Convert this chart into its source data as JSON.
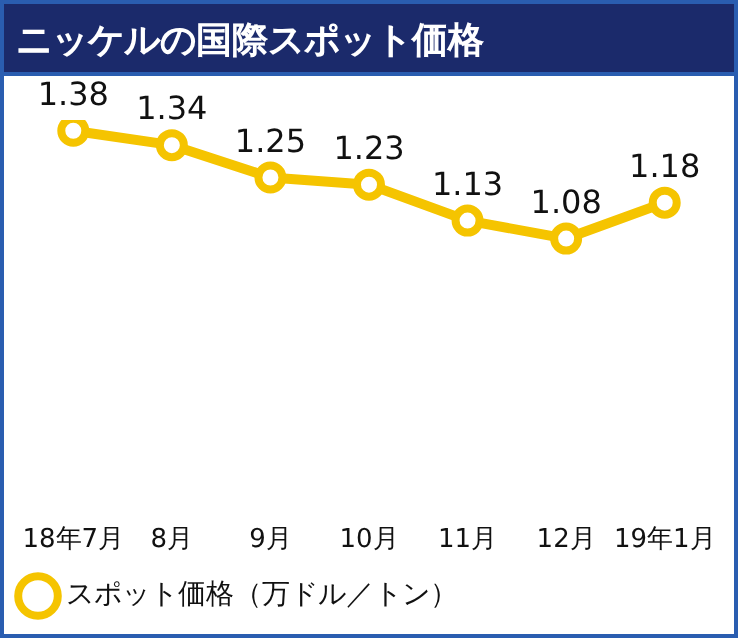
{
  "chart_data": {
    "type": "line",
    "title": "ニッケルの国際スポット価格",
    "categories": [
      "18年7月",
      "8月",
      "9月",
      "10月",
      "11月",
      "12月",
      "19年1月"
    ],
    "series": [
      {
        "name": "スポット価格（万ドル／トン）",
        "color": "#f5c400",
        "values": [
          1.38,
          1.34,
          1.25,
          1.23,
          1.13,
          1.08,
          1.18
        ]
      }
    ],
    "data_labels": true,
    "legend": "bottom left",
    "marker": "circle",
    "grid": false
  }
}
